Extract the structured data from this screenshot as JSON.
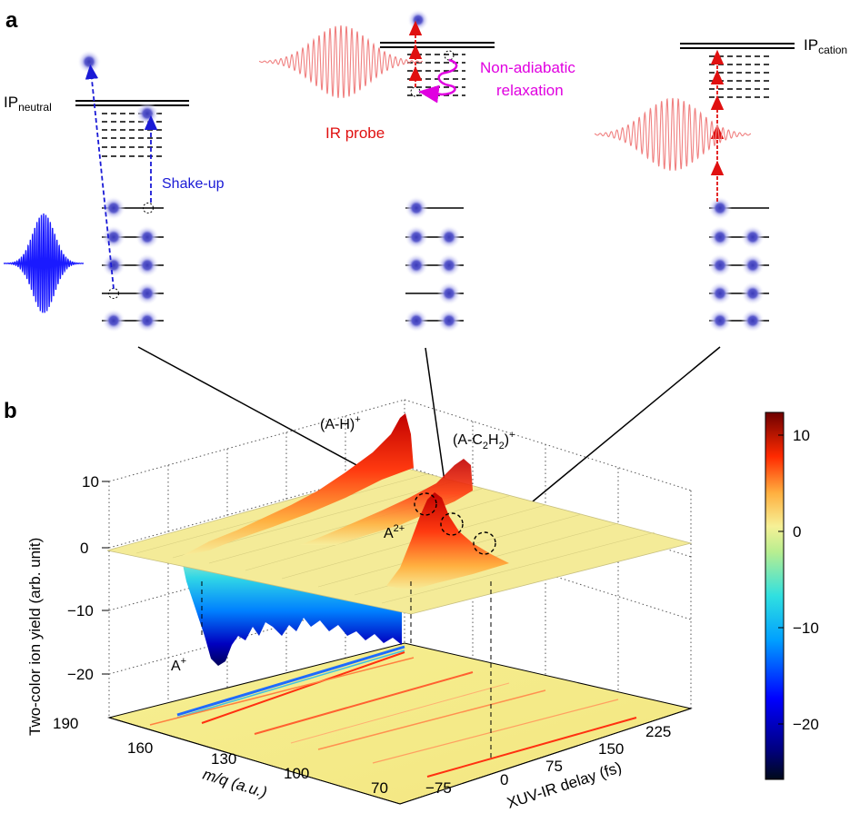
{
  "panels": {
    "a": "a",
    "b": "b"
  },
  "energy_diagram": {
    "ip_neutral_main": "IP",
    "ip_neutral_sub": "neutral",
    "ip_cation_main": "IP",
    "ip_cation_sub": "cation",
    "shake_up": "Shake-up",
    "ir_probe": "IR probe",
    "non_adiabatic_line1": "Non-adiabatic",
    "non_adiabatic_line2": "relaxation"
  },
  "surface_plot": {
    "z_axis_label": "Two-color ion yield (arb. unit)",
    "z_ticks": [
      "10",
      "0",
      "−10",
      "−20"
    ],
    "mq_axis_label": "m/q (a.u.)",
    "mq_ticks": [
      "190",
      "160",
      "130",
      "100",
      "70"
    ],
    "delay_axis_label": "XUV-IR delay (fs)",
    "delay_ticks": [
      "−75",
      "0",
      "75",
      "150",
      "225"
    ],
    "peak_labels": {
      "a_minus_h": "(A-H)",
      "a_minus_h_sup": "+",
      "a_c2h2_pre": "(A-C",
      "a_c2h2_sub1": "2",
      "a_c2h2_mid": "H",
      "a_c2h2_sub2": "2",
      "a_c2h2_post": ")",
      "a_c2h2_sup": "+",
      "a2": "A",
      "a2_sup": "2+",
      "a1": "A",
      "a1_sup": "+"
    }
  },
  "colorbar": {
    "ticks": [
      "10",
      "0",
      "−10",
      "−20"
    ],
    "range": [
      -26,
      12
    ],
    "colormap": "jet"
  },
  "colors": {
    "xuv_pulse": "#1a1aff",
    "ir_pulse": "#f08080",
    "ir_arrow": "#e01010",
    "shake_up": "#1a1ad6",
    "relaxation": "#e000e0",
    "electron": "#4040c0"
  }
}
